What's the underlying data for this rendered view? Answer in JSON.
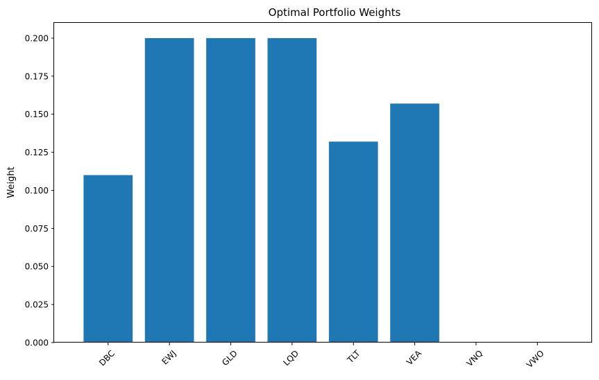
{
  "chart_data": {
    "type": "bar",
    "title": "Optimal Portfolio Weights",
    "xlabel": "",
    "ylabel": "Weight",
    "categories": [
      "DBC",
      "EWJ",
      "GLD",
      "LQD",
      "TLT",
      "VEA",
      "VNQ",
      "VWO"
    ],
    "values": [
      0.11,
      0.2,
      0.2,
      0.2,
      0.132,
      0.157,
      0.0,
      0.0
    ],
    "ylim": [
      0,
      0.21
    ],
    "yticks": [
      0.0,
      0.025,
      0.05,
      0.075,
      0.1,
      0.125,
      0.15,
      0.175,
      0.2
    ],
    "ytick_labels": [
      "0.000",
      "0.025",
      "0.050",
      "0.075",
      "0.100",
      "0.125",
      "0.150",
      "0.175",
      "0.200"
    ],
    "bar_color": "#1f77b4",
    "grid": false,
    "xtick_rotation_deg": 45
  }
}
